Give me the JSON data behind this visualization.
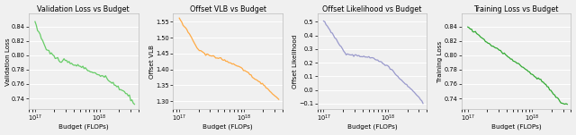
{
  "plots": [
    {
      "title": "Validation Loss vs Budget",
      "ylabel": "Validation Loss",
      "xlabel": "Budget (FLOPs)",
      "color": "#66cc66",
      "ylim": [
        0.725,
        0.858
      ],
      "yticks": [
        0.74,
        0.76,
        0.78,
        0.8,
        0.82,
        0.84
      ],
      "xlim_log": [
        8e+16,
        4e+18
      ]
    },
    {
      "title": "Offset VLB vs Budget",
      "ylabel": "Offset VLB",
      "xlabel": "Budget (FLOPs)",
      "color": "#ffaa44",
      "ylim": [
        1.275,
        1.575
      ],
      "yticks": [
        1.3,
        1.35,
        1.4,
        1.45,
        1.5,
        1.55
      ],
      "xlim_log": [
        8e+16,
        4e+18
      ]
    },
    {
      "title": "Offset Likelihood vs Budget",
      "ylabel": "Offset Likelihood",
      "xlabel": "Budget (FLOPs)",
      "color": "#9999cc",
      "ylim": [
        -0.14,
        0.56
      ],
      "yticks": [
        -0.1,
        0.0,
        0.1,
        0.2,
        0.3,
        0.4,
        0.5
      ],
      "xlim_log": [
        8e+16,
        4e+18
      ]
    },
    {
      "title": "Training Loss vs Budget",
      "ylabel": "Training Loss",
      "xlabel": "Budget (FLOPs)",
      "color": "#33aa33",
      "ylim": [
        0.725,
        0.858
      ],
      "yticks": [
        0.74,
        0.76,
        0.78,
        0.8,
        0.82,
        0.84
      ],
      "xlim_log": [
        8e+16,
        4e+18
      ]
    }
  ],
  "background_color": "#f0f0f0",
  "grid_color": "#ffffff"
}
